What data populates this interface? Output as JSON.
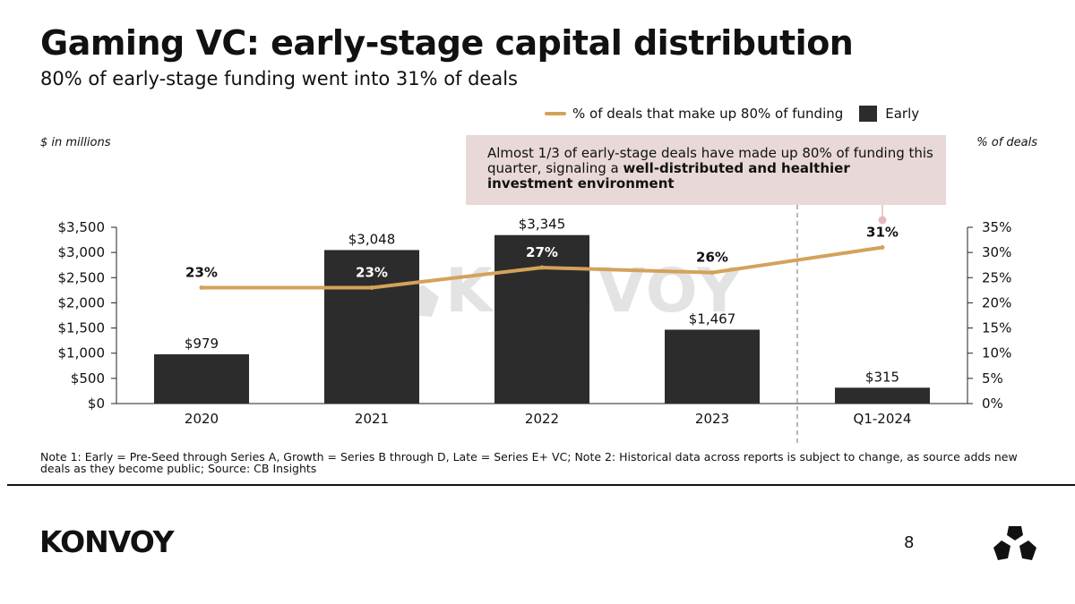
{
  "header": {
    "title": "Gaming VC: early-stage capital distribution",
    "subtitle": "80% of early-stage funding went into 31% of deals"
  },
  "legend": {
    "line_label": "% of deals that make up 80% of funding",
    "bar_label": "Early"
  },
  "axis_units": {
    "left": "$ in millions",
    "right": "% of deals"
  },
  "callout": {
    "text_plain": "Almost 1/3 of early-stage deals have made up 80% of funding this quarter, signaling a ",
    "text_bold": "well-distributed and healthier investment environment"
  },
  "chart_data": {
    "type": "bar",
    "categories": [
      "2020",
      "2021",
      "2022",
      "2023",
      "Q1-2024"
    ],
    "series": [
      {
        "name": "Early",
        "type": "bar",
        "axis": "left",
        "values": [
          979,
          3048,
          3345,
          1467,
          315
        ],
        "labels": [
          "$979",
          "$3,048",
          "$3,345",
          "$1,467",
          "$315"
        ]
      },
      {
        "name": "% of deals that make up 80% of funding",
        "type": "line",
        "axis": "right",
        "values": [
          23,
          23,
          27,
          26,
          31
        ],
        "labels": [
          "23%",
          "23%",
          "27%",
          "26%",
          "31%"
        ]
      }
    ],
    "y_left": {
      "ylim": [
        0,
        3500
      ],
      "ticks": [
        0,
        500,
        1000,
        1500,
        2000,
        2500,
        3000,
        3500
      ],
      "tick_labels": [
        "$0",
        "$500",
        "$1,000",
        "$1,500",
        "$2,000",
        "$2,500",
        "$3,000",
        "$3,500"
      ]
    },
    "y_right": {
      "ylim": [
        0,
        35
      ],
      "ticks": [
        0,
        5,
        10,
        15,
        20,
        25,
        30,
        35
      ],
      "tick_labels": [
        "0%",
        "5%",
        "10%",
        "15%",
        "20%",
        "25%",
        "30%",
        "35%"
      ]
    },
    "grid": false,
    "legend_position": "top-right",
    "watermark": "KONVOY"
  },
  "note": "Note 1: Early = Pre-Seed through Series A, Growth = Series B through D, Late = Series E+ VC; Note 2: Historical data across reports is subject to change, as source adds new deals as they become public; Source: CB Insights",
  "footer": {
    "logo": "KONVOY",
    "page_number": "8"
  },
  "colors": {
    "bar": "#2d2c2c",
    "line": "#d4a25a",
    "callout_bg": "#e8d8d8",
    "text": "#111111"
  }
}
